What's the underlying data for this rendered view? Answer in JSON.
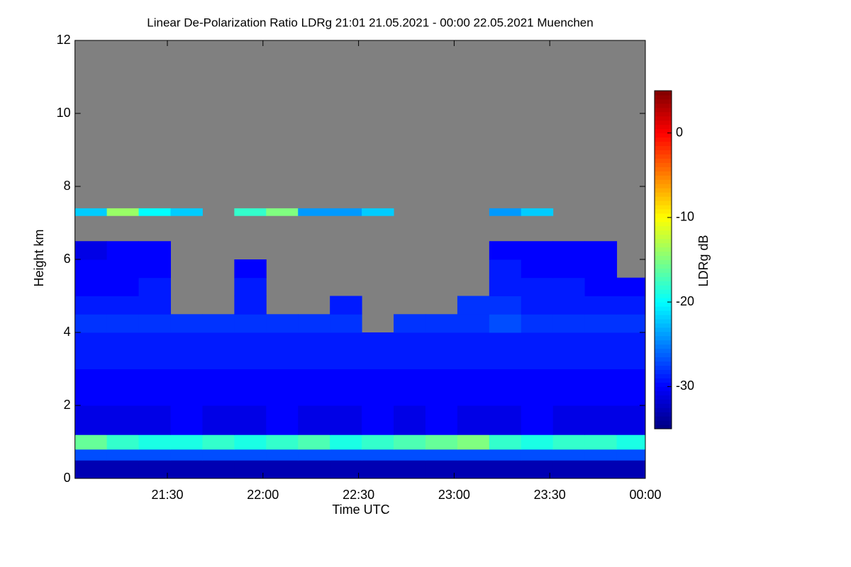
{
  "chart_data": {
    "type": "heatmap",
    "title": "Linear De-Polarization Ratio LDRg   21:01 21.05.2021 - 00:00 22.05.2021 Muenchen",
    "x_label": "Time UTC",
    "y_label": "Height km",
    "colorbar_label": "LDRg dB",
    "xlim": [
      1261,
      1440
    ],
    "xticks": [
      {
        "value": 1290,
        "label": "21:30"
      },
      {
        "value": 1320,
        "label": "22:00"
      },
      {
        "value": 1350,
        "label": "22:30"
      },
      {
        "value": 1380,
        "label": "23:00"
      },
      {
        "value": 1410,
        "label": "23:30"
      },
      {
        "value": 1440,
        "label": "00:00"
      }
    ],
    "ylim": [
      0,
      12
    ],
    "yticks": [
      0,
      2,
      4,
      6,
      8,
      10,
      12
    ],
    "clim": [
      -35,
      5
    ],
    "cticks": [
      -30,
      -20,
      -10,
      0
    ],
    "colormap": "jet",
    "no_data_color": "#808080",
    "xbins": [
      1261,
      1271,
      1281,
      1291,
      1301,
      1311,
      1321,
      1331,
      1341,
      1351,
      1361,
      1371,
      1381,
      1391,
      1401,
      1411,
      1421,
      1431,
      1440
    ],
    "ybins": [
      0,
      0.5,
      0.8,
      1.2,
      2,
      3,
      4,
      4.5,
      5,
      5.5,
      6,
      6.5,
      7,
      7.2,
      7.4,
      12
    ],
    "values": [
      [
        -33,
        -33,
        -33,
        -33,
        -33,
        -33,
        -33,
        -33,
        -33,
        -33,
        -33,
        -33,
        -33,
        -33,
        -33,
        -33,
        -33,
        -33
      ],
      [
        -27,
        -27,
        -27,
        -27,
        -27,
        -27,
        -27,
        -27,
        -27,
        -27,
        -27,
        -27,
        -27,
        -27,
        -27,
        -27,
        -27,
        -27
      ],
      [
        -16,
        -18,
        -19,
        -19,
        -18,
        -19,
        -18,
        -17,
        -19,
        -18,
        -17,
        -16,
        -15,
        -18,
        -19,
        -18,
        -18,
        -19
      ],
      [
        -31,
        -31,
        -31,
        -30,
        -31,
        -31,
        -30,
        -31,
        -31,
        -30,
        -31,
        -30,
        -31,
        -31,
        -30,
        -31,
        -31,
        -31
      ],
      [
        -30,
        -30,
        -30,
        -30,
        -30,
        -30,
        -30,
        -30,
        -30,
        -30,
        -30,
        -30,
        -30,
        -30,
        -30,
        -30,
        -30,
        -30
      ],
      [
        -29,
        -29,
        -29,
        -29,
        -29,
        -29,
        -29,
        -29,
        -29,
        -29,
        -29,
        -29,
        -29,
        -29,
        -29,
        -29,
        -29,
        -29
      ],
      [
        -28,
        -28,
        -28,
        -28,
        -28,
        -28,
        -28,
        -28,
        -28,
        null,
        -28,
        -28,
        -28,
        -27,
        -28,
        -28,
        -28,
        -28
      ],
      [
        -29,
        -29,
        -29,
        null,
        null,
        -29,
        null,
        null,
        -29,
        null,
        null,
        null,
        -28,
        -28,
        -29,
        -29,
        -29,
        -29
      ],
      [
        -30,
        -30,
        -29,
        null,
        null,
        -29,
        null,
        null,
        null,
        null,
        null,
        null,
        null,
        -29,
        -29,
        -29,
        -30,
        -30
      ],
      [
        -30,
        -30,
        -30,
        null,
        null,
        -30,
        null,
        null,
        null,
        null,
        null,
        null,
        null,
        -29,
        -30,
        -30,
        -30,
        null
      ],
      [
        -31,
        -30,
        -30,
        null,
        null,
        null,
        null,
        null,
        null,
        null,
        null,
        null,
        null,
        -30,
        -30,
        -30,
        -30,
        null
      ],
      [
        null,
        null,
        null,
        null,
        null,
        null,
        null,
        null,
        null,
        null,
        null,
        null,
        null,
        null,
        null,
        null,
        null,
        null
      ],
      [
        null,
        null,
        null,
        null,
        null,
        null,
        null,
        null,
        null,
        null,
        null,
        null,
        null,
        null,
        null,
        null,
        null,
        null
      ],
      [
        -22,
        -14,
        -20,
        -22,
        null,
        -18,
        -15,
        -24,
        -24,
        -22,
        null,
        null,
        null,
        -24,
        -22,
        null,
        null,
        null
      ],
      [
        null,
        null,
        null,
        null,
        null,
        null,
        null,
        null,
        null,
        null,
        null,
        null,
        null,
        null,
        null,
        null,
        null,
        null
      ]
    ]
  }
}
